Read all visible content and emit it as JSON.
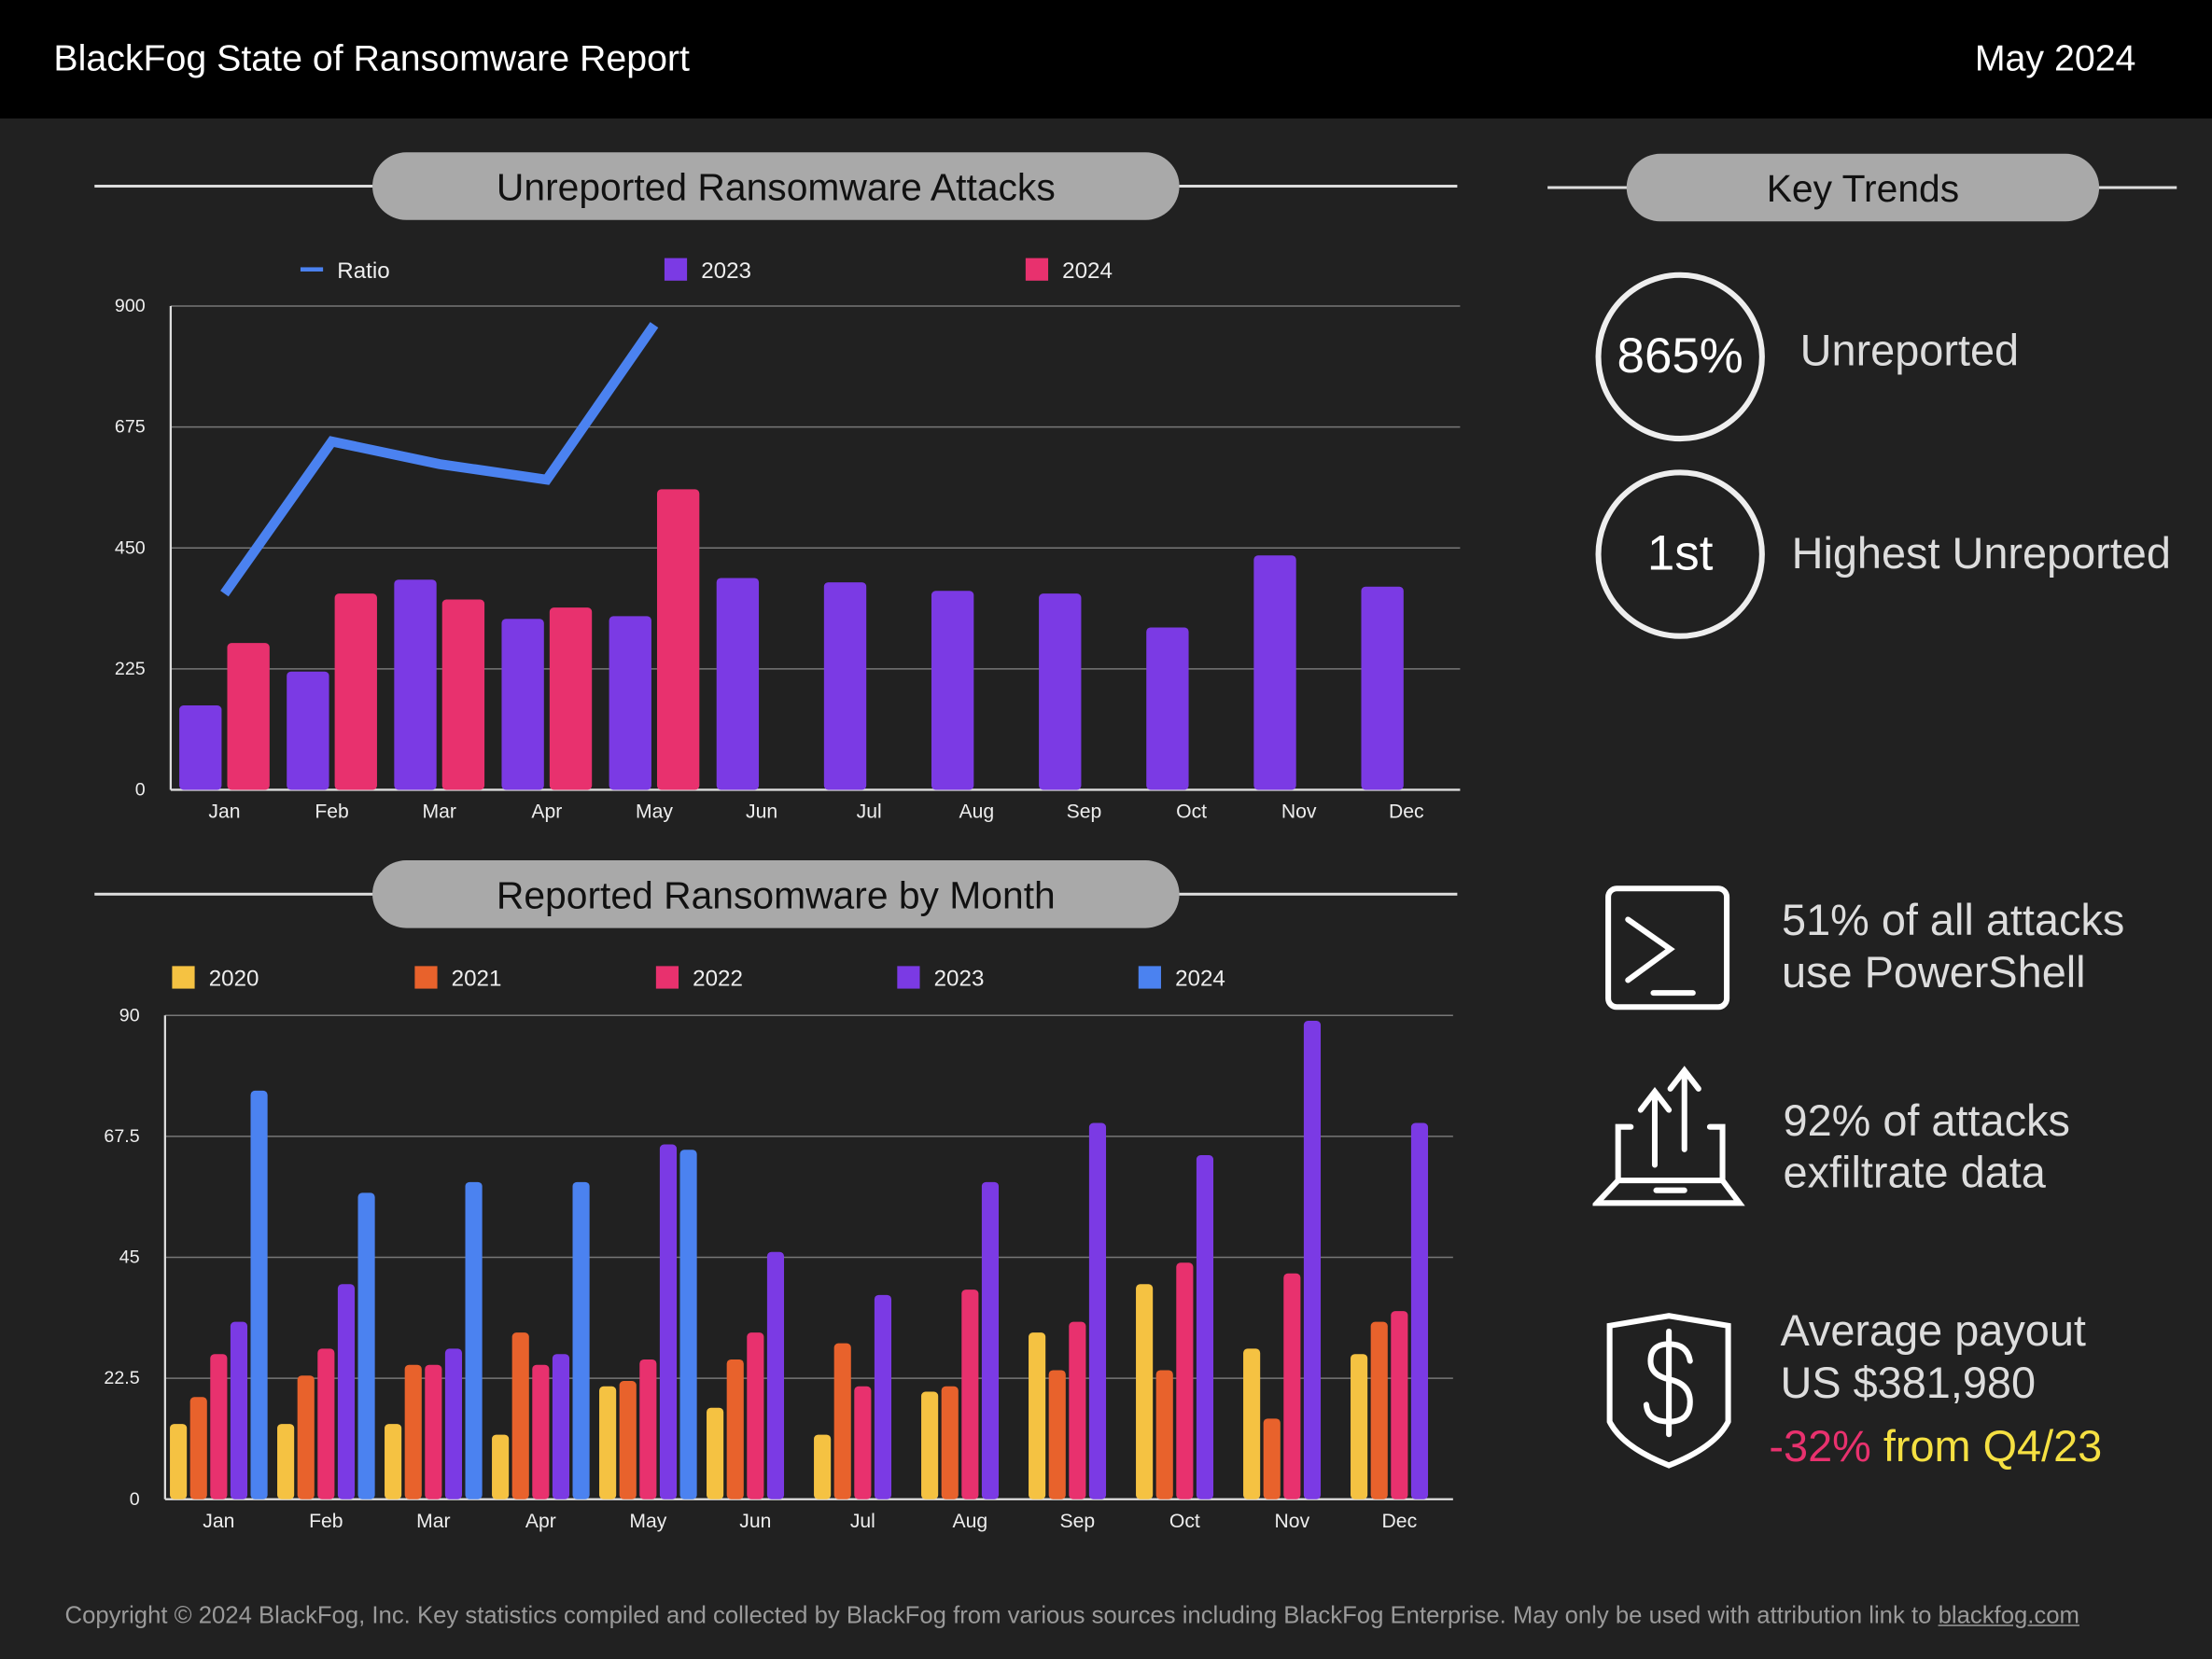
{
  "header": {
    "title": "BlackFog State of Ransomware Report",
    "date": "May 2024"
  },
  "colors": {
    "purple": "#7b3ae4",
    "pink": "#e8316e",
    "blue": "#4b82f0",
    "yellow": "#f5c242",
    "orange": "#e8622c"
  },
  "key_trends": {
    "title": "Key Trends",
    "unreported_value": "865%",
    "unreported_label": "Unreported",
    "rank_value": "1st",
    "rank_label": "Highest Unreported",
    "powershell_line1": "51% of all attacks",
    "powershell_line2": "use PowerShell",
    "exfil_line1": "92% of attacks",
    "exfil_line2": "exfiltrate data",
    "payout_line1": "Average payout",
    "payout_line2": "US $381,980",
    "payout_change": "-32%",
    "payout_change_suffix": "from Q4/23",
    "icons": [
      "terminal-icon",
      "laptop-upload-icon",
      "shield-dollar-icon"
    ]
  },
  "footer": {
    "text": "Copyright © 2024 BlackFog, Inc. Key statistics compiled and collected by BlackFog from various sources including BlackFog Enterprise. May only be used with attribution link to",
    "link": "blackfog.com"
  },
  "chart_data": [
    {
      "type": "bar",
      "title": "Unreported Ransomware Attacks",
      "categories": [
        "Jan",
        "Feb",
        "Mar",
        "Apr",
        "May",
        "Jun",
        "Jul",
        "Aug",
        "Sep",
        "Oct",
        "Nov",
        "Dec"
      ],
      "ylim": [
        0,
        900
      ],
      "yticks": [
        "0",
        "225",
        "450",
        "675",
        "900"
      ],
      "grid": true,
      "legend": "top",
      "series": [
        {
          "name": "Ratio",
          "type": "line",
          "color": "#4b82f0",
          "values": [
            365,
            648,
            606,
            577,
            865,
            null,
            null,
            null,
            null,
            null,
            null,
            null
          ]
        },
        {
          "name": "2023",
          "color": "#7b3ae4",
          "values": [
            157,
            220,
            391,
            318,
            323,
            394,
            386,
            370,
            365,
            302,
            436,
            378
          ]
        },
        {
          "name": "2024",
          "color": "#e8316e",
          "values": [
            273,
            365,
            354,
            339,
            559,
            null,
            null,
            null,
            null,
            null,
            null,
            null
          ]
        }
      ]
    },
    {
      "type": "bar",
      "title": "Reported Ransomware by Month",
      "categories": [
        "Jan",
        "Feb",
        "Mar",
        "Apr",
        "May",
        "Jun",
        "Jul",
        "Aug",
        "Sep",
        "Oct",
        "Nov",
        "Dec"
      ],
      "ylim": [
        0,
        90
      ],
      "yticks": [
        "0",
        "22.5",
        "45",
        "67.5",
        "90"
      ],
      "grid": true,
      "legend": "top",
      "series": [
        {
          "name": "2020",
          "color": "#f5c242",
          "values": [
            14,
            14,
            14,
            12,
            21,
            17,
            12,
            20,
            31,
            40,
            28,
            27
          ]
        },
        {
          "name": "2021",
          "color": "#e8622c",
          "values": [
            19,
            23,
            25,
            31,
            22,
            26,
            29,
            21,
            24,
            24,
            15,
            33
          ]
        },
        {
          "name": "2022",
          "color": "#e8316e",
          "values": [
            27,
            28,
            25,
            25,
            26,
            31,
            21,
            39,
            33,
            44,
            42,
            35
          ]
        },
        {
          "name": "2023",
          "color": "#7b3ae4",
          "values": [
            33,
            40,
            28,
            27,
            66,
            46,
            38,
            59,
            70,
            64,
            89,
            70
          ]
        },
        {
          "name": "2024",
          "color": "#4b82f0",
          "values": [
            76,
            57,
            59,
            59,
            65,
            null,
            null,
            null,
            null,
            null,
            null,
            null
          ]
        }
      ]
    }
  ]
}
